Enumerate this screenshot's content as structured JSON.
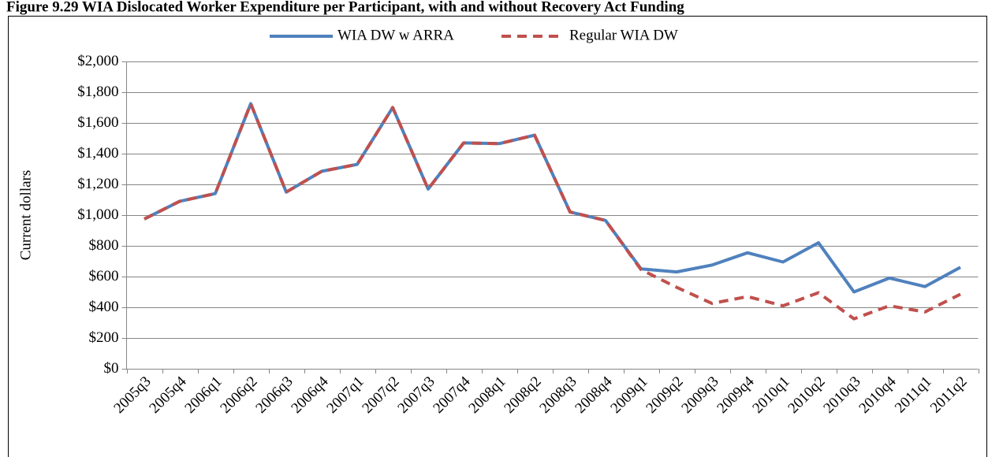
{
  "chart_data": {
    "type": "line",
    "title": "Figure 9.29  WIA Dislocated Worker Expenditure per Participant, with and without Recovery Act Funding",
    "y_label": "Current dollars",
    "categories": [
      "2005q3",
      "2005q4",
      "2006q1",
      "2006q2",
      "2006q3",
      "2006q4",
      "2007q1",
      "2007q2",
      "2007q3",
      "2007q4",
      "2008q1",
      "2008q2",
      "2008q3",
      "2008q4",
      "2009q1",
      "2009q2",
      "2009q3",
      "2009q4",
      "2010q1",
      "2010q2",
      "2010q3",
      "2010q4",
      "2011q1",
      "2011q2"
    ],
    "series": [
      {
        "name": "WIA DW w ARRA",
        "color": "#4f81bd",
        "dash": false,
        "values": [
          975,
          1090,
          1140,
          1725,
          1150,
          1285,
          1330,
          1700,
          1170,
          1470,
          1465,
          1520,
          1020,
          965,
          650,
          630,
          675,
          755,
          695,
          820,
          500,
          590,
          535,
          660
        ]
      },
      {
        "name": "Regular WIA DW",
        "color": "#c0504d",
        "dash": true,
        "values": [
          975,
          1090,
          1140,
          1725,
          1150,
          1285,
          1330,
          1700,
          1170,
          1470,
          1465,
          1520,
          1020,
          965,
          645,
          530,
          425,
          470,
          410,
          495,
          325,
          410,
          370,
          485
        ]
      }
    ],
    "ylim": [
      0,
      2000
    ],
    "yticks": [
      {
        "value": 0,
        "label": "$0"
      },
      {
        "value": 200,
        "label": "$200"
      },
      {
        "value": 400,
        "label": "$400"
      },
      {
        "value": 600,
        "label": "$600"
      },
      {
        "value": 800,
        "label": "$800"
      },
      {
        "value": 1000,
        "label": "$1,000"
      },
      {
        "value": 1200,
        "label": "$1,200"
      },
      {
        "value": 1400,
        "label": "$1,400"
      },
      {
        "value": 1600,
        "label": "$1,600"
      },
      {
        "value": 1800,
        "label": "$1,800"
      },
      {
        "value": 2000,
        "label": "$2,000"
      }
    ],
    "grid": true,
    "legend": "top"
  }
}
